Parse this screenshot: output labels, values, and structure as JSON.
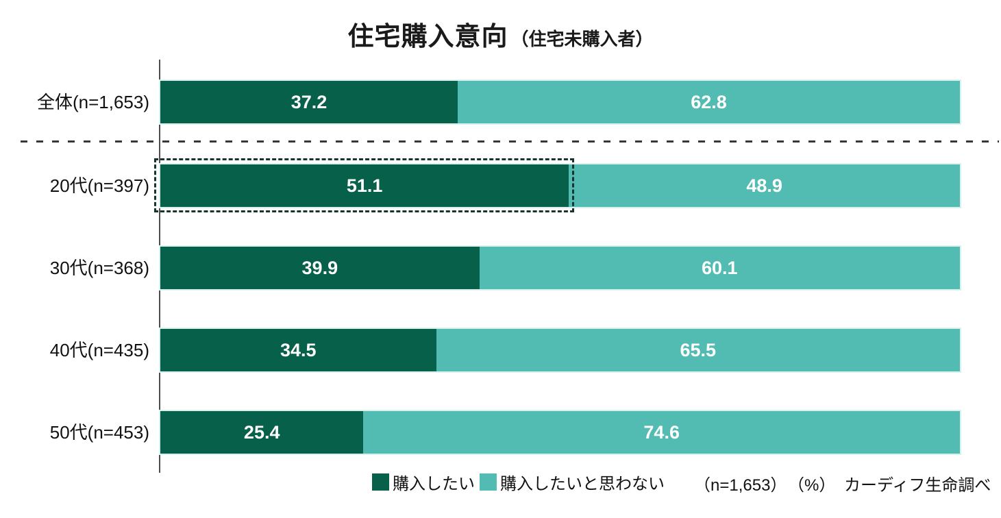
{
  "title": {
    "main": "住宅購入意向",
    "sub": "（住宅未購入者）"
  },
  "colors": {
    "want": "#07604a",
    "not_want": "#53bcb2",
    "highlight_border": "#16352e"
  },
  "chart_data": {
    "type": "bar",
    "orientation": "horizontal",
    "stacked": true,
    "unit": "%",
    "xlim": [
      0,
      100
    ],
    "series_names": [
      "購入したい",
      "購入したいと思わない"
    ],
    "categories": [
      "全体(n=1,653)",
      "20代(n=397)",
      "30代(n=368)",
      "40代(n=435)",
      "50代(n=453)"
    ],
    "rows": [
      {
        "label": "全体(n=1,653)",
        "want": 37.2,
        "not_want": 62.8,
        "highlighted": false
      },
      {
        "label": "20代(n=397)",
        "want": 51.1,
        "not_want": 48.9,
        "highlighted": true
      },
      {
        "label": "30代(n=368)",
        "want": 39.9,
        "not_want": 60.1,
        "highlighted": false
      },
      {
        "label": "40代(n=435)",
        "want": 34.5,
        "not_want": 65.5,
        "highlighted": false
      },
      {
        "label": "50代(n=453)",
        "want": 25.4,
        "not_want": 74.6,
        "highlighted": false
      }
    ]
  },
  "legend": {
    "items": [
      {
        "label": "購入したい",
        "color": "#07604a"
      },
      {
        "label": "購入したいと思わない",
        "color": "#53bcb2"
      }
    ],
    "sample_note": "（n=1,653）",
    "unit_note": "（%）",
    "source": "カーディフ生命調べ"
  }
}
